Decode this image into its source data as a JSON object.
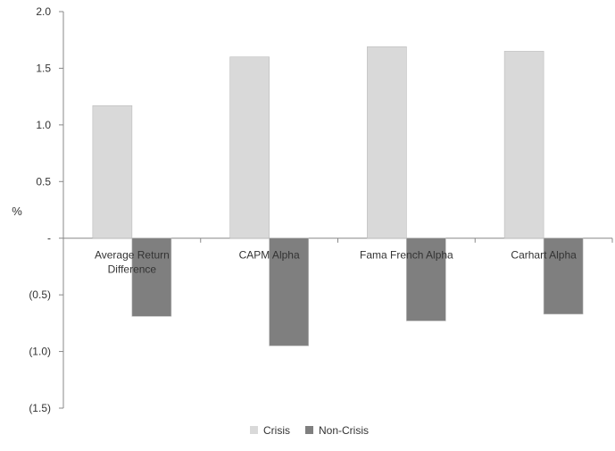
{
  "chart_data": {
    "type": "bar",
    "title": "",
    "xlabel": "",
    "ylabel": "%",
    "ylim": [
      -1.5,
      2.0
    ],
    "yticks": [
      2.0,
      1.5,
      1.0,
      0.5,
      0,
      -0.5,
      -1.0,
      -1.5
    ],
    "ytick_labels": [
      "2.0",
      "1.5",
      "1.0",
      "0.5",
      "-",
      "(0.5)",
      "(1.0)",
      "(1.5)"
    ],
    "categories": [
      [
        "Average Return",
        "Difference"
      ],
      [
        "CAPM Alpha"
      ],
      [
        "Fama French Alpha"
      ],
      [
        "Carhart Alpha"
      ]
    ],
    "series": [
      {
        "name": "Crisis",
        "color": "#d9d9d9",
        "values": [
          1.17,
          1.6,
          1.69,
          1.65
        ]
      },
      {
        "name": "Non-Crisis",
        "color": "#7f7f7f",
        "values": [
          -0.69,
          -0.95,
          -0.73,
          -0.67
        ]
      }
    ],
    "grid": false,
    "legend_position": "bottom"
  }
}
